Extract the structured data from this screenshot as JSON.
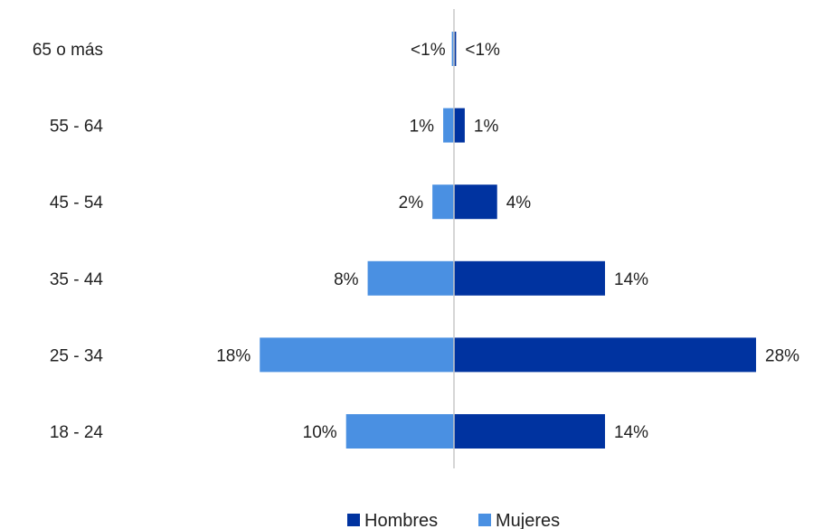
{
  "chart_data": {
    "type": "bar",
    "orientation": "horizontal",
    "layout": "population-pyramid",
    "categories": [
      "65 o más",
      "55 - 64",
      "45 - 54",
      "35 - 44",
      "25 - 34",
      "18 - 24"
    ],
    "series": [
      {
        "name": "Hombres",
        "side": "right",
        "color": "#0033a0",
        "values": [
          0.2,
          1,
          4,
          14,
          28,
          14
        ],
        "labels": [
          "<1%",
          "1%",
          "4%",
          "14%",
          "28%",
          "14%"
        ]
      },
      {
        "name": "Mujeres",
        "side": "left",
        "color": "#4a90e2",
        "values": [
          0.2,
          1,
          2,
          8,
          18,
          10
        ],
        "labels": [
          "<1%",
          "1%",
          "2%",
          "8%",
          "18%",
          "10%"
        ]
      }
    ],
    "xlim": [
      -18,
      28
    ],
    "unit": "%",
    "grid": false,
    "legend": {
      "position": "bottom",
      "entries": [
        "Hombres",
        "Mujeres"
      ]
    }
  },
  "colors": {
    "axis": "#c8c8c8",
    "text": "#222222"
  }
}
